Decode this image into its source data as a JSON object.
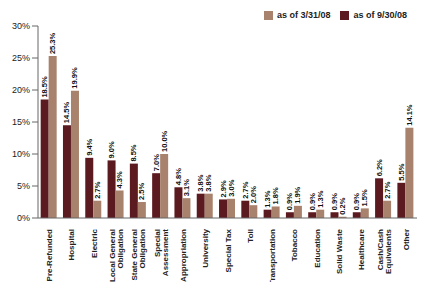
{
  "chart_data": {
    "type": "bar",
    "categories": [
      "Pre-Refunded",
      "Hospital",
      "Electric",
      "Local General Obligation",
      "State General Obligation",
      "Special Assessment",
      "Appropriation",
      "University",
      "Special Tax",
      "Toll",
      "Transportation",
      "Tobacco",
      "Education",
      "Solid Waste",
      "Healthcare",
      "Cash/Cash Equivalents",
      "Other"
    ],
    "series": [
      {
        "name": "as of 9/30/08",
        "color": "#5a1a1f",
        "values": [
          18.5,
          14.5,
          9.4,
          9.0,
          8.5,
          7.0,
          4.8,
          3.8,
          2.9,
          2.7,
          1.3,
          0.9,
          0.9,
          0.9,
          0.9,
          6.2,
          5.5
        ],
        "value_labels": [
          "18.5%",
          "14.5%",
          "9.4%",
          "9.0%",
          "8.5%",
          "7.0%",
          "4.8%",
          "3.8%",
          "2.9%",
          "2.7%",
          "1.3%",
          "0.9%",
          "0.9%",
          "0.9%",
          "0.9%",
          "6.2%",
          "5.5%"
        ]
      },
      {
        "name": "as of 3/31/08",
        "color": "#a8826c",
        "values": [
          25.3,
          19.9,
          2.7,
          4.3,
          2.5,
          10.0,
          3.1,
          3.8,
          3.0,
          2.0,
          1.8,
          1.9,
          1.3,
          0.2,
          1.5,
          2.7,
          14.1
        ],
        "value_labels": [
          "25.3%",
          "19.9%",
          "2.7%",
          "4.3%",
          "2.5%",
          "10.0%",
          "3.1%",
          "3.8%",
          "3.0%",
          "2.0%",
          "1.8%",
          "1.9%",
          "1.3%",
          "0.2%",
          "1.5%",
          "2.7%",
          "14.1%"
        ]
      }
    ],
    "ylim": [
      0,
      30
    ],
    "yticks": [
      {
        "value": 0,
        "label": "0%"
      },
      {
        "value": 5,
        "label": "5%"
      },
      {
        "value": 10,
        "label": "10%"
      },
      {
        "value": 15,
        "label": "15%"
      },
      {
        "value": 20,
        "label": "20%"
      },
      {
        "value": 25,
        "label": "25%"
      },
      {
        "value": 30,
        "label": "30%"
      }
    ],
    "grid": false,
    "legend": "upper right",
    "data_labels": true
  }
}
